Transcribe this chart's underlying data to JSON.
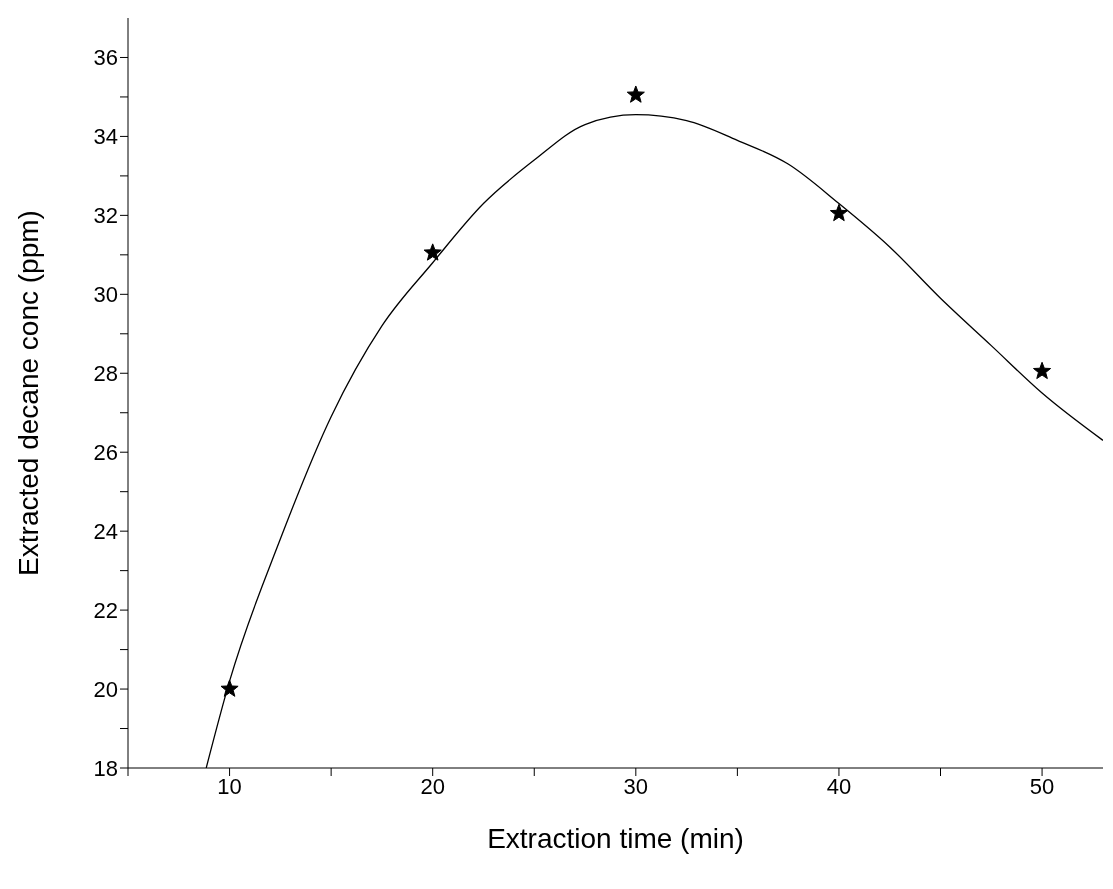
{
  "chart_data": {
    "type": "scatter",
    "xlabel": "Extraction time (min)",
    "ylabel": "Extracted decane conc (ppm)",
    "xlim": [
      5,
      53
    ],
    "ylim": [
      18,
      37
    ],
    "xticks": [
      {
        "value": 5,
        "label": null
      },
      10,
      {
        "value": 15,
        "label": null
      },
      20,
      {
        "value": 25,
        "label": null
      },
      30,
      {
        "value": 35,
        "label": null
      },
      40,
      {
        "value": 45,
        "label": null
      },
      50
    ],
    "yticks": [
      18,
      {
        "value": 19,
        "label": null
      },
      20,
      {
        "value": 21,
        "label": null
      },
      22,
      {
        "value": 23,
        "label": null
      },
      24,
      {
        "value": 25,
        "label": null
      },
      26,
      {
        "value": 27,
        "label": null
      },
      28,
      {
        "value": 29,
        "label": null
      },
      30,
      {
        "value": 31,
        "label": null
      },
      32,
      {
        "value": 33,
        "label": null
      },
      34,
      {
        "value": 35,
        "label": null
      },
      36
    ],
    "series": [
      {
        "marker": "star",
        "color": "#000000",
        "x": [
          10,
          20,
          30,
          40,
          50
        ],
        "values": [
          20.0,
          31.05,
          35.05,
          32.05,
          28.05
        ]
      },
      {
        "type": "line",
        "marker": "none",
        "color": "#000000",
        "x": [
          8.85,
          10,
          12.5,
          15,
          17.5,
          20,
          22.5,
          25,
          27.5,
          30,
          32.5,
          35,
          37.5,
          40,
          42.5,
          45,
          47.5,
          50,
          53
        ],
        "values": [
          18,
          20.2,
          23.8,
          26.9,
          29.2,
          30.8,
          32.3,
          33.4,
          34.3,
          34.55,
          34.4,
          33.9,
          33.3,
          32.3,
          31.2,
          29.9,
          28.7,
          27.5,
          26.3
        ]
      }
    ]
  }
}
